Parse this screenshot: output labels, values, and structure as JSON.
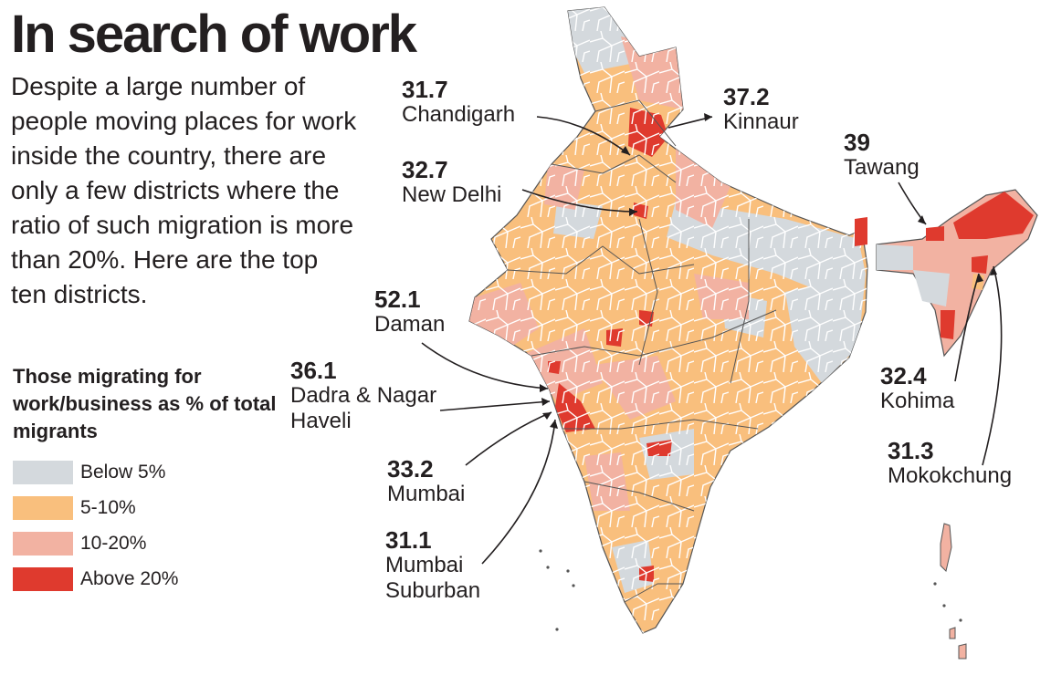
{
  "header": {
    "title": "In search of work",
    "intro": "Despite a large number of people moving places for work inside the country, there are only a few districts where the ratio of such migration is more than 20%. Here are the top ten districts."
  },
  "legend": {
    "title": "Those migrating for work/business as % of total migrants",
    "items": [
      {
        "label": "Below 5%",
        "color": "#d4d9dd"
      },
      {
        "label": "5-10%",
        "color": "#f9bf7d"
      },
      {
        "label": "10-20%",
        "color": "#f2b2a2"
      },
      {
        "label": "Above 20%",
        "color": "#df3a2e"
      }
    ]
  },
  "callouts": [
    {
      "value": "31.7",
      "name": "Chandigarh"
    },
    {
      "value": "37.2",
      "name": "Kinnaur"
    },
    {
      "value": "39",
      "name": "Tawang"
    },
    {
      "value": "32.7",
      "name": "New Delhi"
    },
    {
      "value": "52.1",
      "name": "Daman"
    },
    {
      "value": "36.1",
      "name": "Dadra & Nagar Haveli"
    },
    {
      "value": "32.4",
      "name": "Kohima"
    },
    {
      "value": "31.3",
      "name": "Mokokchung"
    },
    {
      "value": "33.2",
      "name": "Mumbai"
    },
    {
      "value": "31.1",
      "name": "Mumbai Suburban"
    }
  ]
}
